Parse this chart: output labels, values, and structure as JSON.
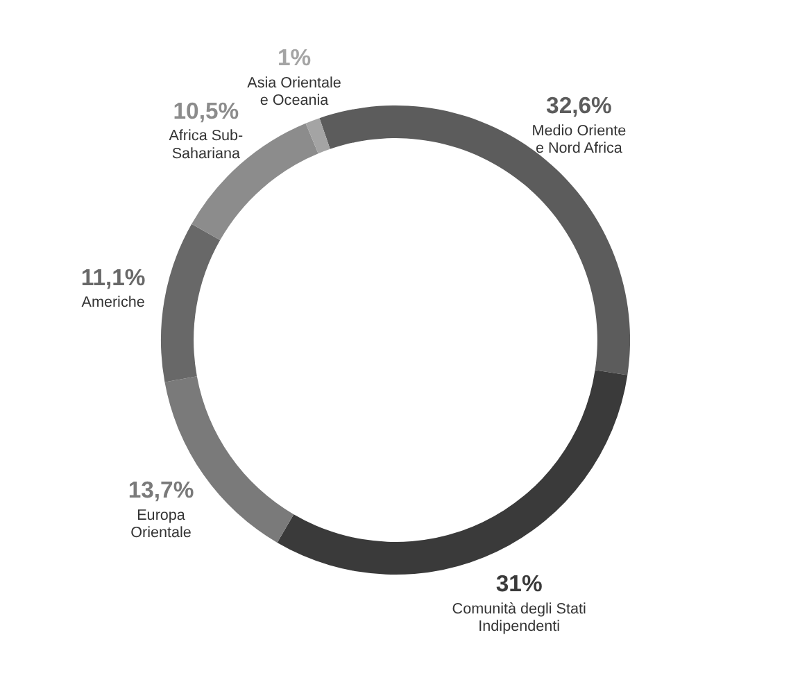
{
  "chart_data": {
    "type": "donut",
    "categories": [
      "Medio Oriente\ne Nord Africa",
      "Comunità degli Stati\nIndipendenti",
      "Europa\nOrientale",
      "Americhe",
      "Africa Sub-\nSahariana",
      "Asia Orientale\ne Oceania"
    ],
    "values": [
      32.6,
      31,
      13.7,
      11.1,
      10.5,
      1
    ],
    "value_labels": [
      "32,6%",
      "31%",
      "13,7%",
      "11,1%",
      "10,5%",
      "1%"
    ],
    "colors": [
      "#5c5c5c",
      "#3a3a3a",
      "#7a7a7a",
      "#686868",
      "#8c8c8c",
      "#a4a4a4"
    ],
    "legend": false
  }
}
